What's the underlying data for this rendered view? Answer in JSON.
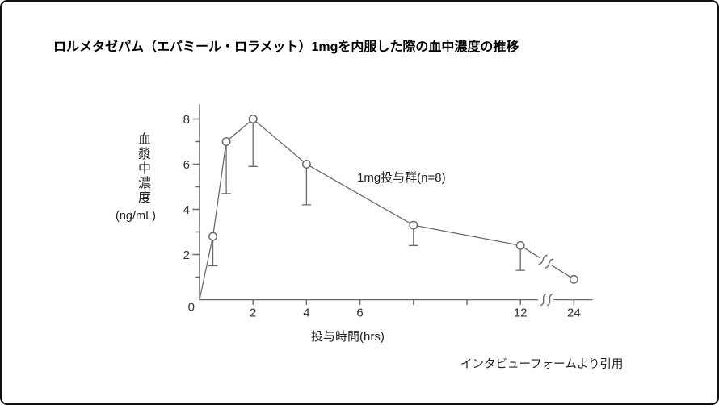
{
  "figure": {
    "title": "ロルメタゼパム（エバミール・ロラメット）1mgを内服した際の血中濃度の推移",
    "citation": "インタビューフォームより引用"
  },
  "chart_data": {
    "type": "line",
    "title": "ロルメタゼパム（エバミール・ロラメット）1mgを内服した際の血中濃度の推移",
    "xlabel": "投与時間(hrs)",
    "ylabel": "血漿中濃度",
    "ylabel_unit": "(ng/mL)",
    "series": [
      {
        "name": "1mg投与群(n=8)",
        "x_hours": [
          0,
          0.5,
          1,
          2,
          4,
          8,
          12,
          24
        ],
        "mean_ng_ml": [
          0,
          2.8,
          7.0,
          8.0,
          6.0,
          3.3,
          2.4,
          0.9
        ],
        "error_bar_lower": [
          null,
          1.5,
          4.7,
          5.9,
          4.2,
          2.4,
          1.3,
          null
        ]
      }
    ],
    "ylim": [
      0,
      8.6
    ],
    "y_ticks_labeled": [
      2,
      4,
      6,
      8
    ],
    "y_ticks_minor": [
      1,
      3,
      5,
      7
    ],
    "origin_label": "0",
    "x_ticks_labeled": [
      2,
      4,
      6,
      12,
      24
    ],
    "x_ticks_unlabeled": [
      8,
      10
    ],
    "x_axis_break_between": [
      12,
      24
    ],
    "grid": false,
    "legend_position": "inline-annotation",
    "marker": "open-circle",
    "error_bars": "downward-only",
    "line_color": "#6a6a6a",
    "text_color": "#333333"
  }
}
